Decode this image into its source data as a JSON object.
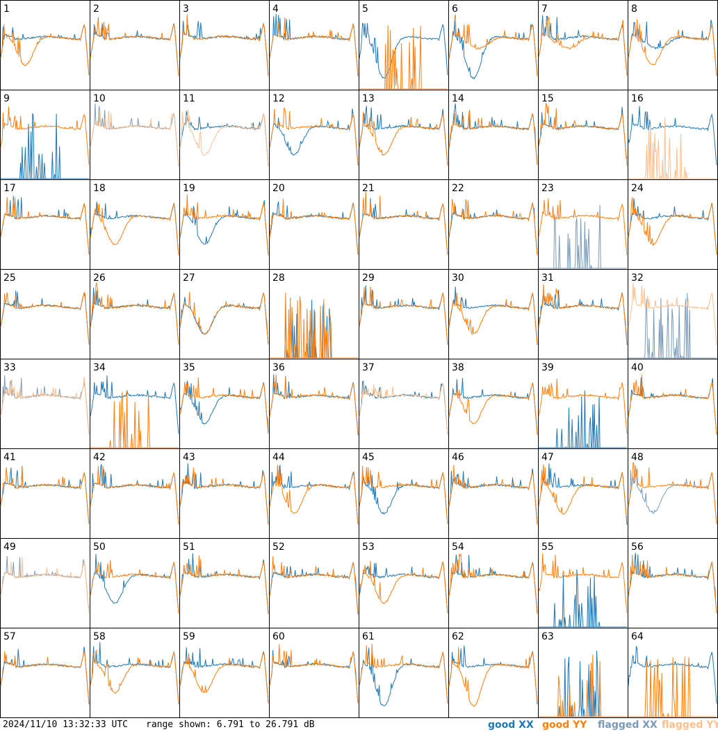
{
  "footer": {
    "timestamp": "2024/11/10 13:32:33 UTC",
    "range_text": "range shown: 6.791 to 26.791 dB"
  },
  "legend": [
    {
      "key": "good_xx",
      "label": "good XX",
      "color": "#1f77b4"
    },
    {
      "key": "good_yy",
      "label": "good YY",
      "color": "#ff7f0e"
    },
    {
      "key": "flagged_xx",
      "label": "flagged XX",
      "color": "#7a9ab8"
    },
    {
      "key": "flagged_yy",
      "label": "flagged YY",
      "color": "#fcbf8e"
    }
  ],
  "colors": {
    "good_xx": "#1f77b4",
    "good_yy": "#ff7f0e",
    "flagged_xx": "#7a9ab8",
    "flagged_yy": "#fcbf8e",
    "frame": "#000000"
  },
  "chart_data": {
    "type": "line",
    "layout": "8x8 small multiples",
    "ylim": [
      6.791,
      26.791
    ],
    "y_unit": "dB",
    "panels": [
      {
        "id": "1",
        "xx": "S1",
        "yy": "D1",
        "xx_flagged": false,
        "yy_flagged": false
      },
      {
        "id": "2",
        "xx": "N",
        "yy": "N",
        "xx_flagged": false,
        "yy_flagged": false
      },
      {
        "id": "3",
        "xx": "N",
        "yy": "N",
        "xx_flagged": false,
        "yy_flagged": false
      },
      {
        "id": "4",
        "xx": "N",
        "yy": "N",
        "xx_flagged": false,
        "yy_flagged": false
      },
      {
        "id": "5",
        "xx": "D",
        "yy": "Z",
        "xx_flagged": false,
        "yy_flagged": false
      },
      {
        "id": "6",
        "xx": "D",
        "yy": "S",
        "xx_flagged": false,
        "yy_flagged": false
      },
      {
        "id": "7",
        "xx": "N",
        "yy": "S",
        "xx_flagged": false,
        "yy_flagged": false
      },
      {
        "id": "8",
        "xx": "S",
        "yy": "D1",
        "xx_flagged": false,
        "yy_flagged": false
      },
      {
        "id": "9",
        "xx": "Z",
        "yy": "N",
        "xx_flagged": false,
        "yy_flagged": false
      },
      {
        "id": "10",
        "xx": "N",
        "yy": "N",
        "xx_flagged": true,
        "yy_flagged": true
      },
      {
        "id": "11",
        "xx": "N",
        "yy": "D1",
        "xx_flagged": false,
        "yy_flagged": true
      },
      {
        "id": "12",
        "xx": "D1",
        "yy": "N",
        "xx_flagged": false,
        "yy_flagged": false
      },
      {
        "id": "13",
        "xx": "N",
        "yy": "D1",
        "xx_flagged": false,
        "yy_flagged": false
      },
      {
        "id": "14",
        "xx": "N",
        "yy": "N",
        "xx_flagged": false,
        "yy_flagged": false
      },
      {
        "id": "15",
        "xx": "N",
        "yy": "N",
        "xx_flagged": false,
        "yy_flagged": false
      },
      {
        "id": "16",
        "xx": "N",
        "yy": "Z",
        "xx_flagged": false,
        "yy_flagged": true
      },
      {
        "id": "17",
        "xx": "N",
        "yy": "N",
        "xx_flagged": false,
        "yy_flagged": false
      },
      {
        "id": "18",
        "xx": "N",
        "yy": "D1",
        "xx_flagged": false,
        "yy_flagged": false
      },
      {
        "id": "19",
        "xx": "D1",
        "yy": "N",
        "xx_flagged": false,
        "yy_flagged": false
      },
      {
        "id": "20",
        "xx": "N",
        "yy": "N",
        "xx_flagged": false,
        "yy_flagged": false
      },
      {
        "id": "21",
        "xx": "N",
        "yy": "N",
        "xx_flagged": false,
        "yy_flagged": false
      },
      {
        "id": "22",
        "xx": "N",
        "yy": "N",
        "xx_flagged": false,
        "yy_flagged": false
      },
      {
        "id": "23",
        "xx": "Z",
        "yy": "N",
        "xx_flagged": true,
        "yy_flagged": false
      },
      {
        "id": "24",
        "xx": "N",
        "yy": "D1",
        "xx_flagged": false,
        "yy_flagged": false
      },
      {
        "id": "25",
        "xx": "N",
        "yy": "N",
        "xx_flagged": false,
        "yy_flagged": false
      },
      {
        "id": "26",
        "xx": "N",
        "yy": "N",
        "xx_flagged": false,
        "yy_flagged": false
      },
      {
        "id": "27",
        "xx": "D1",
        "yy": "D1",
        "xx_flagged": false,
        "yy_flagged": false
      },
      {
        "id": "28",
        "xx": "Z",
        "yy": "Z",
        "xx_flagged": false,
        "yy_flagged": false
      },
      {
        "id": "29",
        "xx": "N",
        "yy": "N",
        "xx_flagged": false,
        "yy_flagged": false
      },
      {
        "id": "30",
        "xx": "N",
        "yy": "D1",
        "xx_flagged": false,
        "yy_flagged": false
      },
      {
        "id": "31",
        "xx": "N",
        "yy": "N",
        "xx_flagged": false,
        "yy_flagged": false
      },
      {
        "id": "32",
        "xx": "Z",
        "yy": "N",
        "xx_flagged": true,
        "yy_flagged": true
      },
      {
        "id": "33",
        "xx": "N",
        "yy": "N",
        "xx_flagged": true,
        "yy_flagged": true
      },
      {
        "id": "34",
        "xx": "N",
        "yy": "Z",
        "xx_flagged": false,
        "yy_flagged": false
      },
      {
        "id": "35",
        "xx": "D1",
        "yy": "N",
        "xx_flagged": false,
        "yy_flagged": false
      },
      {
        "id": "36",
        "xx": "N",
        "yy": "N",
        "xx_flagged": false,
        "yy_flagged": false
      },
      {
        "id": "37",
        "xx": "N",
        "yy": "N",
        "xx_flagged": false,
        "yy_flagged": true
      },
      {
        "id": "38",
        "xx": "N",
        "yy": "D1",
        "xx_flagged": false,
        "yy_flagged": false
      },
      {
        "id": "39",
        "xx": "Z",
        "yy": "N",
        "xx_flagged": false,
        "yy_flagged": false
      },
      {
        "id": "40",
        "xx": "N",
        "yy": "N",
        "xx_flagged": false,
        "yy_flagged": false
      },
      {
        "id": "41",
        "xx": "N",
        "yy": "N",
        "xx_flagged": false,
        "yy_flagged": false
      },
      {
        "id": "42",
        "xx": "N",
        "yy": "N",
        "xx_flagged": false,
        "yy_flagged": false
      },
      {
        "id": "43",
        "xx": "N",
        "yy": "N",
        "xx_flagged": false,
        "yy_flagged": false
      },
      {
        "id": "44",
        "xx": "N",
        "yy": "D1",
        "xx_flagged": false,
        "yy_flagged": false
      },
      {
        "id": "45",
        "xx": "D1",
        "yy": "N",
        "xx_flagged": false,
        "yy_flagged": false
      },
      {
        "id": "46",
        "xx": "N",
        "yy": "N",
        "xx_flagged": false,
        "yy_flagged": false
      },
      {
        "id": "47",
        "xx": "N",
        "yy": "D1",
        "xx_flagged": false,
        "yy_flagged": false
      },
      {
        "id": "48",
        "xx": "D1",
        "yy": "N",
        "xx_flagged": true,
        "yy_flagged": false
      },
      {
        "id": "49",
        "xx": "N",
        "yy": "N",
        "xx_flagged": true,
        "yy_flagged": true
      },
      {
        "id": "50",
        "xx": "D1",
        "yy": "N",
        "xx_flagged": false,
        "yy_flagged": false
      },
      {
        "id": "51",
        "xx": "N",
        "yy": "N",
        "xx_flagged": false,
        "yy_flagged": false
      },
      {
        "id": "52",
        "xx": "N",
        "yy": "N",
        "xx_flagged": false,
        "yy_flagged": false
      },
      {
        "id": "53",
        "xx": "N",
        "yy": "D1",
        "xx_flagged": false,
        "yy_flagged": false
      },
      {
        "id": "54",
        "xx": "N",
        "yy": "N",
        "xx_flagged": false,
        "yy_flagged": false
      },
      {
        "id": "55",
        "xx": "Z",
        "yy": "N",
        "xx_flagged": false,
        "yy_flagged": false
      },
      {
        "id": "56",
        "xx": "N",
        "yy": "N",
        "xx_flagged": false,
        "yy_flagged": false
      },
      {
        "id": "57",
        "xx": "N",
        "yy": "N",
        "xx_flagged": false,
        "yy_flagged": false
      },
      {
        "id": "58",
        "xx": "N",
        "yy": "D1",
        "xx_flagged": false,
        "yy_flagged": false
      },
      {
        "id": "59",
        "xx": "N",
        "yy": "D1",
        "xx_flagged": false,
        "yy_flagged": false
      },
      {
        "id": "60",
        "xx": "N",
        "yy": "N",
        "xx_flagged": false,
        "yy_flagged": false
      },
      {
        "id": "61",
        "xx": "D",
        "yy": "N",
        "xx_flagged": false,
        "yy_flagged": false
      },
      {
        "id": "62",
        "xx": "N",
        "yy": "D",
        "xx_flagged": false,
        "yy_flagged": false
      },
      {
        "id": "63",
        "xx": "Z",
        "yy": "Z",
        "xx_flagged": false,
        "yy_flagged": false
      },
      {
        "id": "64",
        "xx": "N",
        "yy": "Z",
        "xx_flagged": false,
        "yy_flagged": false
      }
    ]
  }
}
